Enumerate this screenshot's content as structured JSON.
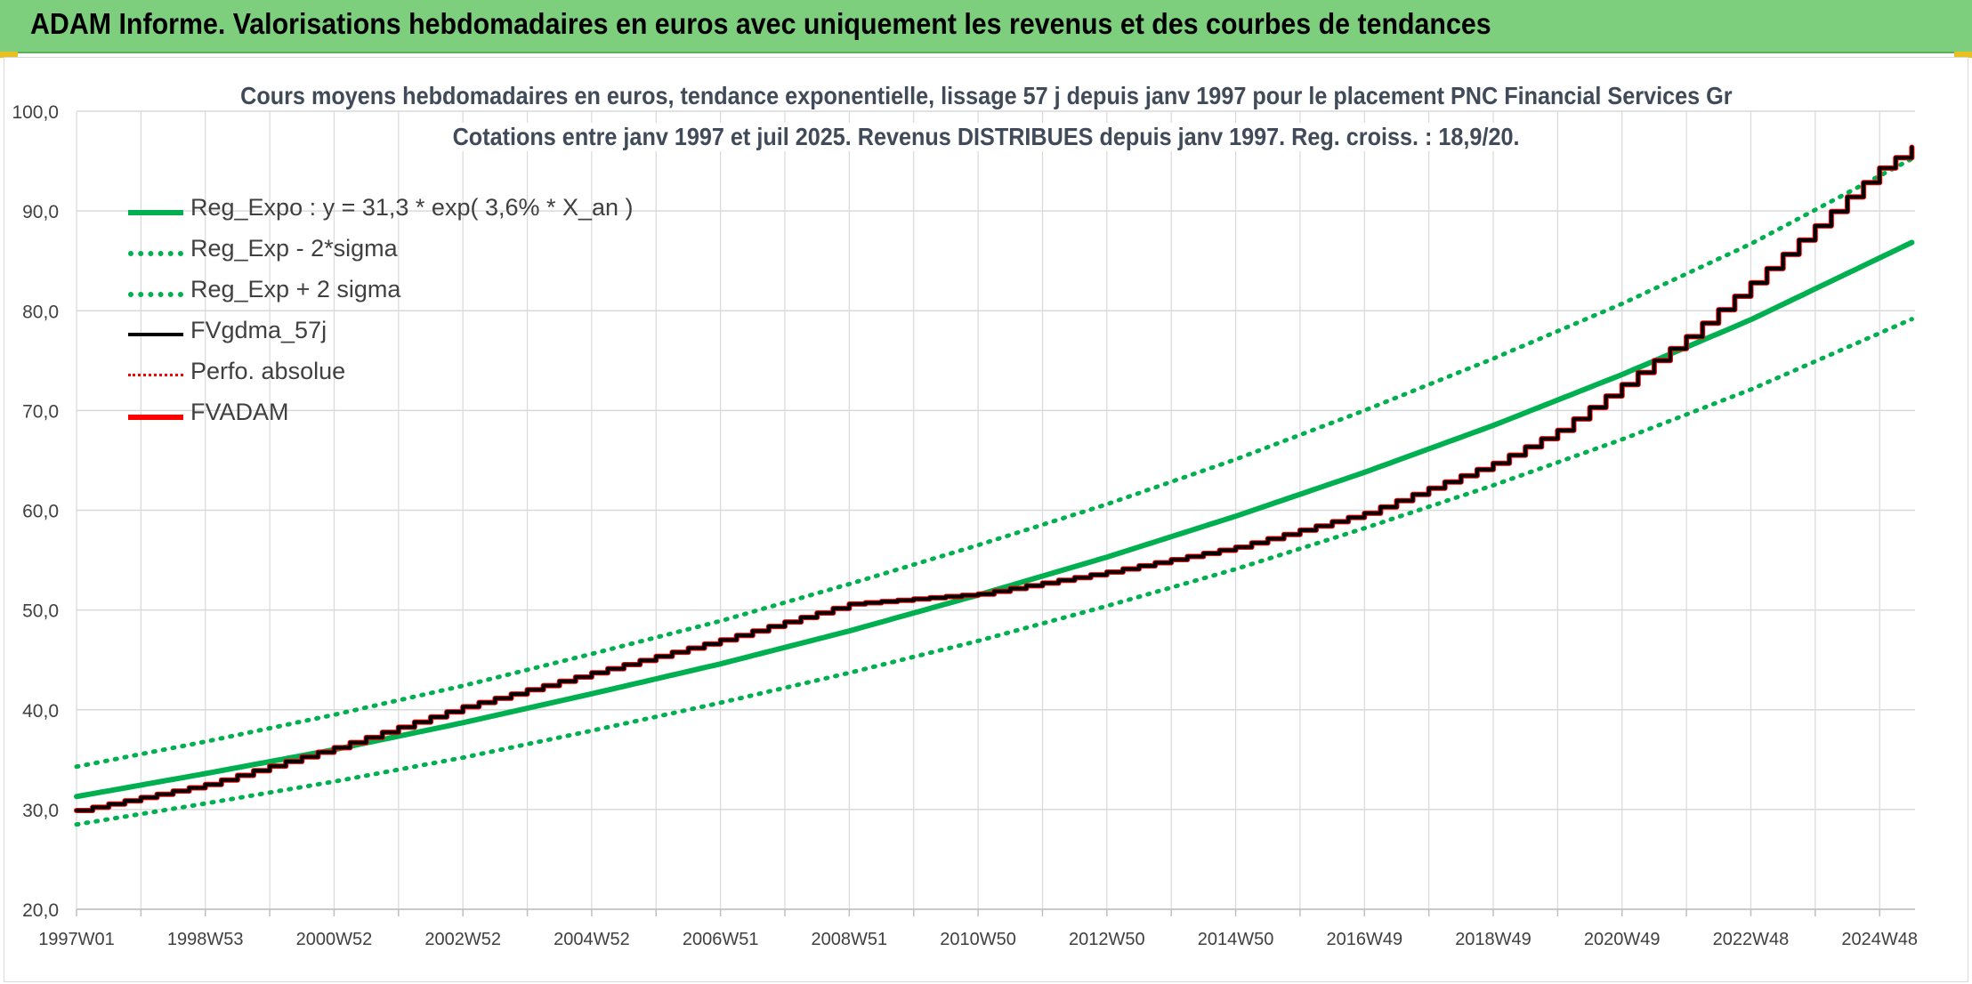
{
  "banner": {
    "title": "ADAM Informe. Valorisations hebdomadaires en euros avec uniquement les revenus et des courbes de tendances"
  },
  "colors": {
    "banner_bg": "#7dcf7d",
    "green": "#00b050",
    "red": "#ff0000",
    "black": "#000000",
    "grid": "#d9d9d9"
  },
  "chart_data": {
    "type": "line",
    "title": "Cours moyens hebdomadaires en euros, tendance exponentielle, lissage 57 j depuis janv 1997 pour le placement PNC Financial Services Gr",
    "subtitle": "Cotations entre janv 1997 et juil 2025. Revenus DISTRIBUES depuis janv 1997. Reg. croiss. : 18,9/20.",
    "ylim": [
      20,
      100
    ],
    "yticks": [
      "20,0",
      "30,0",
      "40,0",
      "50,0",
      "60,0",
      "70,0",
      "80,0",
      "90,0",
      "100,0"
    ],
    "xlim": [
      1997.0,
      2025.55
    ],
    "xticks": [
      {
        "label": "1997W01",
        "x": 1997.0
      },
      {
        "label": "1998W53",
        "x": 1999.0
      },
      {
        "label": "2000W52",
        "x": 2001.0
      },
      {
        "label": "2002W52",
        "x": 2003.0
      },
      {
        "label": "2004W52",
        "x": 2005.0
      },
      {
        "label": "2006W51",
        "x": 2007.0
      },
      {
        "label": "2008W51",
        "x": 2009.0
      },
      {
        "label": "2010W50",
        "x": 2011.0
      },
      {
        "label": "2012W50",
        "x": 2013.0
      },
      {
        "label": "2014W50",
        "x": 2015.0
      },
      {
        "label": "2016W49",
        "x": 2017.0
      },
      {
        "label": "2018W49",
        "x": 2019.0
      },
      {
        "label": "2020W49",
        "x": 2021.0
      },
      {
        "label": "2022W48",
        "x": 2023.0
      },
      {
        "label": "2024W48",
        "x": 2025.0
      }
    ],
    "grid": true,
    "legend_position": "top-left",
    "series": [
      {
        "name": "Reg_Expo : y = 31,3 * exp( 3,6% *  X_an )",
        "color": "#00b050",
        "style": "solid-thick",
        "x": [
          1997,
          1999,
          2001,
          2003,
          2005,
          2007,
          2009,
          2011,
          2013,
          2015,
          2017,
          2019,
          2021,
          2023,
          2025.55
        ],
        "y": [
          31.3,
          33.6,
          36.0,
          38.7,
          41.6,
          44.6,
          47.9,
          51.5,
          55.3,
          59.4,
          63.8,
          68.5,
          73.6,
          79.1,
          87.0
        ]
      },
      {
        "name": "Reg_Exp - 2*sigma",
        "color": "#00b050",
        "style": "dotted",
        "x": [
          1997,
          1999,
          2001,
          2003,
          2005,
          2007,
          2009,
          2011,
          2013,
          2015,
          2017,
          2019,
          2021,
          2023,
          2025.55
        ],
        "y": [
          28.5,
          30.6,
          32.8,
          35.2,
          37.9,
          40.7,
          43.7,
          46.9,
          50.4,
          54.1,
          58.2,
          62.5,
          67.1,
          72.1,
          79.3
        ]
      },
      {
        "name": "Reg_Exp + 2 sigma",
        "color": "#00b050",
        "style": "dotted",
        "x": [
          1997,
          1999,
          2001,
          2003,
          2005,
          2007,
          2009,
          2011,
          2013,
          2015,
          2017,
          2019,
          2021,
          2023,
          2025.55
        ],
        "y": [
          34.3,
          36.8,
          39.5,
          42.4,
          45.6,
          48.9,
          52.6,
          56.5,
          60.6,
          65.1,
          70.0,
          75.2,
          80.7,
          86.7,
          95.4
        ]
      },
      {
        "name": "FVgdma_57j",
        "color": "#000000",
        "style": "solid",
        "x": [
          1997,
          1999,
          2001,
          2003,
          2005,
          2007,
          2009,
          2010,
          2011,
          2013,
          2015,
          2017,
          2019,
          2020,
          2021,
          2022,
          2023,
          2024,
          2025,
          2025.55
        ],
        "y": [
          29.9,
          32.5,
          36.2,
          40.3,
          43.7,
          47.0,
          50.6,
          51.1,
          51.6,
          53.8,
          56.3,
          59.7,
          64.7,
          68.0,
          72.6,
          77.4,
          82.8,
          88.5,
          94.3,
          96.6
        ]
      },
      {
        "name": "Perfo. absolue",
        "color": "#ff0000",
        "style": "dotted-thin",
        "x": [],
        "y": []
      },
      {
        "name": "FVADAM",
        "color": "#ff0000",
        "style": "solid-thick",
        "x": [
          1997,
          1999,
          2001,
          2003,
          2005,
          2007,
          2009,
          2010,
          2011,
          2013,
          2015,
          2017,
          2019,
          2020,
          2021,
          2022,
          2023,
          2024,
          2025,
          2025.55
        ],
        "y": [
          29.9,
          32.5,
          36.2,
          40.3,
          43.7,
          47.0,
          50.6,
          51.1,
          51.6,
          53.8,
          56.3,
          59.7,
          64.7,
          68.0,
          72.6,
          77.4,
          82.8,
          88.5,
          94.3,
          96.6
        ]
      }
    ]
  }
}
